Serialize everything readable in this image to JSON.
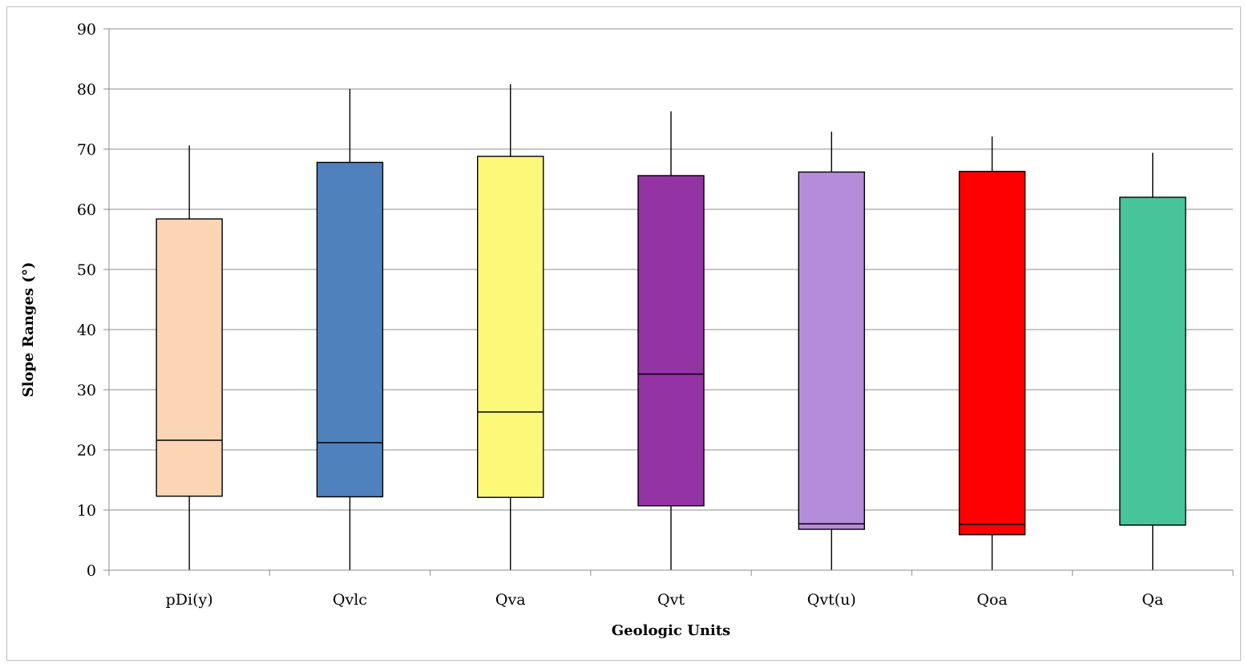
{
  "chart_data": {
    "type": "box",
    "title": "",
    "xlabel": "Geologic Units",
    "ylabel": "Slope Ranges (°)",
    "ylim": [
      0,
      90
    ],
    "ytick_step": 10,
    "grid": true,
    "categories": [
      "pDi(y)",
      "Qvlc",
      "Qva",
      "Qvt",
      "Qvt(u)",
      "Qoa",
      "Qa"
    ],
    "boxes": [
      {
        "category": "pDi(y)",
        "min": 0,
        "q1": 12.3,
        "median": 21.6,
        "q3": 58.4,
        "max": 70.6,
        "color": "#FCD5B5"
      },
      {
        "category": "Qvlc",
        "min": 0,
        "q1": 12.2,
        "median": 21.2,
        "q3": 67.8,
        "max": 80.0,
        "color": "#4F81BD"
      },
      {
        "category": "Qva",
        "min": 0,
        "q1": 12.1,
        "median": 26.3,
        "q3": 68.8,
        "max": 80.8,
        "color": "#FCF878"
      },
      {
        "category": "Qvt",
        "min": 0,
        "q1": 10.7,
        "median": 32.6,
        "q3": 65.6,
        "max": 76.3,
        "color": "#9433A3"
      },
      {
        "category": "Qvt(u)",
        "min": 0,
        "q1": 6.8,
        "median": 7.7,
        "q3": 66.2,
        "max": 72.9,
        "color": "#B58CD9"
      },
      {
        "category": "Qoa",
        "min": 0,
        "q1": 5.9,
        "median": 7.6,
        "q3": 66.3,
        "max": 72.1,
        "color": "#FF0000"
      },
      {
        "category": "Qa",
        "min": 0,
        "q1": 7.5,
        "median": 7.5,
        "q3": 62.0,
        "max": 69.4,
        "color": "#48C49A"
      }
    ]
  }
}
